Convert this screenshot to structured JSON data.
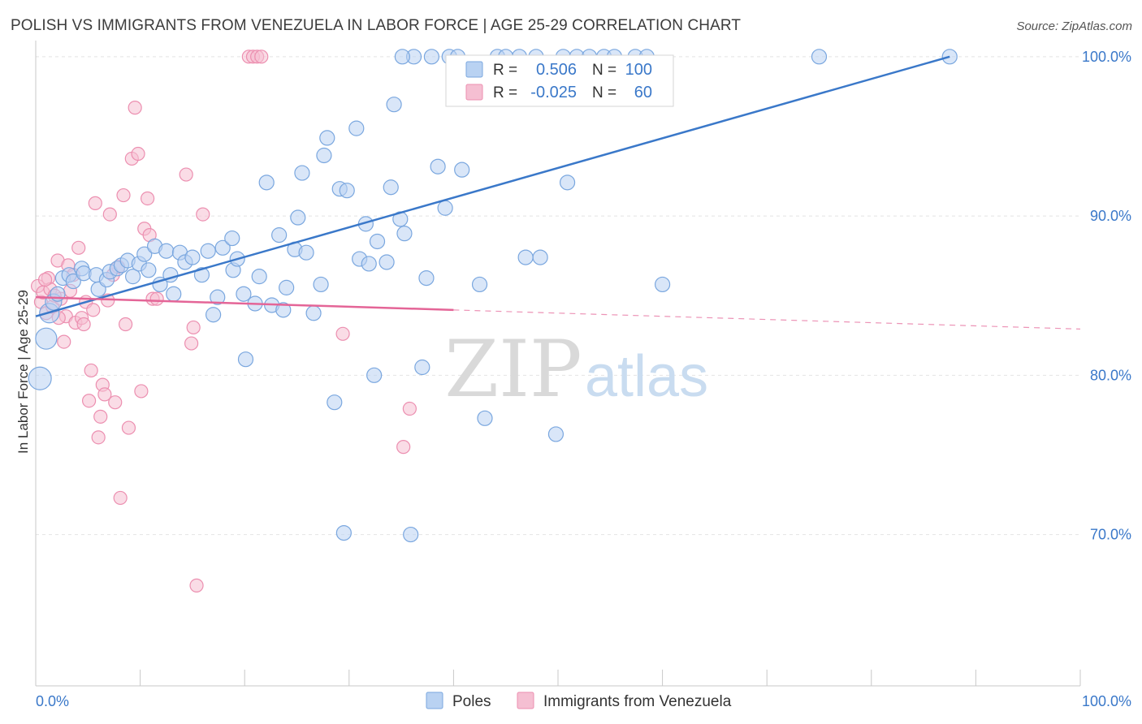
{
  "header": {
    "title": "POLISH VS IMMIGRANTS FROM VENEZUELA IN LABOR FORCE | AGE 25-29 CORRELATION CHART",
    "source": "Source: ZipAtlas.com"
  },
  "watermark": {
    "zip": "ZIP",
    "atlas": "atlas"
  },
  "colors": {
    "blue": "#3a78c9",
    "blue_fill": "#b9d2f2",
    "blue_edge": "#7aa7df",
    "pink": "#e46597",
    "pink_fill": "#f5bfd2",
    "pink_edge": "#ec8fb0",
    "tick_text": "#3a78c9",
    "grid": "#e4e4e4"
  },
  "chart_data": {
    "type": "scatter",
    "title": "POLISH VS IMMIGRANTS FROM VENEZUELA IN LABOR FORCE | AGE 25-29 CORRELATION CHART",
    "xlabel": "",
    "ylabel": "In Labor Force | Age 25-29",
    "xlim": [
      0,
      100
    ],
    "ylim": [
      60.5,
      100.5
    ],
    "x_tick_labels": [
      {
        "value": 0,
        "label": "0.0%"
      },
      {
        "value": 100,
        "label": "100.0%"
      }
    ],
    "y_tick_labels": [
      {
        "value": 100,
        "label": "100.0%"
      },
      {
        "value": 90,
        "label": "90.0%"
      },
      {
        "value": 80,
        "label": "80.0%"
      },
      {
        "value": 70,
        "label": "70.0%"
      }
    ],
    "legend_position": "top-center",
    "stats": [
      {
        "series": "Poles",
        "r_label": "R =",
        "r": "0.506",
        "n_label": "N =",
        "n": "100"
      },
      {
        "series": "Immigrants from Venezuela",
        "r_label": "R =",
        "r": "-0.025",
        "n_label": "N =",
        "n": "60"
      }
    ],
    "series": [
      {
        "name": "Poles",
        "color": "#3a78c9",
        "trend": {
          "x0": 0,
          "y0": 83.7,
          "x1": 87.5,
          "y1": 100.0,
          "solid_to": 87.5
        },
        "points": [
          [
            0.4,
            79.8,
            14
          ],
          [
            1.0,
            82.3,
            13
          ],
          [
            1.3,
            83.9,
            12
          ],
          [
            1.7,
            84.6,
            10
          ],
          [
            2.1,
            85.1,
            9
          ],
          [
            2.6,
            86.1,
            9
          ],
          [
            3.2,
            86.3,
            9
          ],
          [
            3.6,
            85.9,
            9
          ],
          [
            4.4,
            86.7,
            9
          ],
          [
            4.6,
            86.4,
            9
          ],
          [
            5.8,
            86.3,
            9
          ],
          [
            6.0,
            85.4,
            9
          ],
          [
            6.8,
            86.0,
            9
          ],
          [
            7.1,
            86.5,
            9
          ],
          [
            7.8,
            86.7,
            9
          ],
          [
            8.2,
            86.9,
            9
          ],
          [
            8.8,
            87.2,
            9
          ],
          [
            9.3,
            86.2,
            9
          ],
          [
            9.9,
            87.0,
            9
          ],
          [
            10.4,
            87.6,
            9
          ],
          [
            10.8,
            86.6,
            9
          ],
          [
            11.4,
            88.1,
            9
          ],
          [
            11.9,
            85.7,
            9
          ],
          [
            12.5,
            87.8,
            9
          ],
          [
            12.9,
            86.3,
            9
          ],
          [
            13.2,
            85.1,
            9
          ],
          [
            13.8,
            87.7,
            9
          ],
          [
            14.3,
            87.1,
            9
          ],
          [
            15.0,
            87.4,
            9
          ],
          [
            15.9,
            86.3,
            9
          ],
          [
            16.5,
            87.8,
            9
          ],
          [
            17.0,
            83.8,
            9
          ],
          [
            17.4,
            84.9,
            9
          ],
          [
            17.9,
            88.0,
            9
          ],
          [
            18.8,
            88.6,
            9
          ],
          [
            18.9,
            86.6,
            9
          ],
          [
            19.3,
            87.3,
            9
          ],
          [
            19.9,
            85.1,
            9
          ],
          [
            20.1,
            81.0,
            9
          ],
          [
            21.0,
            84.5,
            9
          ],
          [
            21.4,
            86.2,
            9
          ],
          [
            22.1,
            92.1,
            9
          ],
          [
            22.6,
            84.4,
            9
          ],
          [
            23.3,
            88.8,
            9
          ],
          [
            23.7,
            84.1,
            9
          ],
          [
            24.0,
            85.5,
            9
          ],
          [
            24.8,
            87.9,
            9
          ],
          [
            25.1,
            89.9,
            9
          ],
          [
            25.5,
            92.7,
            9
          ],
          [
            25.9,
            87.7,
            9
          ],
          [
            26.6,
            83.9,
            9
          ],
          [
            27.3,
            85.7,
            9
          ],
          [
            27.6,
            93.8,
            9
          ],
          [
            27.9,
            94.9,
            9
          ],
          [
            28.6,
            78.3,
            9
          ],
          [
            29.1,
            91.7,
            9
          ],
          [
            29.5,
            70.1,
            9
          ],
          [
            29.8,
            91.6,
            9
          ],
          [
            30.7,
            95.5,
            9
          ],
          [
            31.0,
            87.3,
            9
          ],
          [
            31.6,
            89.5,
            9
          ],
          [
            31.9,
            87.0,
            9
          ],
          [
            32.4,
            80.0,
            9
          ],
          [
            32.7,
            88.4,
            9
          ],
          [
            33.6,
            87.1,
            9
          ],
          [
            34.0,
            91.8,
            9
          ],
          [
            34.3,
            97.0,
            9
          ],
          [
            34.9,
            89.8,
            9
          ],
          [
            35.3,
            88.9,
            9
          ],
          [
            35.9,
            70.0,
            9
          ],
          [
            37.0,
            80.5,
            9
          ],
          [
            37.4,
            86.1,
            9
          ],
          [
            38.5,
            93.1,
            9
          ],
          [
            39.2,
            90.5,
            9
          ],
          [
            39.6,
            100.0,
            9
          ],
          [
            40.8,
            92.9,
            9
          ],
          [
            42.5,
            85.7,
            9
          ],
          [
            43.0,
            77.3,
            9
          ],
          [
            44.2,
            100.0,
            9
          ],
          [
            46.3,
            100.0,
            9
          ],
          [
            46.9,
            87.4,
            9
          ],
          [
            47.9,
            100.0,
            9
          ],
          [
            48.3,
            87.4,
            9
          ],
          [
            49.8,
            76.3,
            9
          ],
          [
            50.5,
            100.0,
            9
          ],
          [
            50.9,
            92.1,
            9
          ],
          [
            51.8,
            100.0,
            9
          ],
          [
            53.0,
            100.0,
            9
          ],
          [
            54.4,
            100.0,
            9
          ],
          [
            55.4,
            100.0,
            9
          ],
          [
            57.4,
            100.0,
            9
          ],
          [
            58.5,
            100.0,
            9
          ],
          [
            60.0,
            85.7,
            9
          ],
          [
            37.9,
            100.0,
            9
          ],
          [
            36.2,
            100.0,
            9
          ],
          [
            35.1,
            100.0,
            9
          ],
          [
            40.4,
            100.0,
            9
          ],
          [
            45.0,
            100.0,
            9
          ],
          [
            75.0,
            100.0,
            9
          ],
          [
            87.5,
            100.0,
            9
          ]
        ]
      },
      {
        "name": "Immigrants from Venezuela",
        "color": "#e46597",
        "trend": {
          "x0": 0,
          "y0": 84.9,
          "x1": 100,
          "y1": 82.9,
          "solid_to": 40.0
        },
        "points": [
          [
            0.2,
            85.6,
            8
          ],
          [
            0.5,
            84.6,
            8
          ],
          [
            0.7,
            85.2,
            8
          ],
          [
            1.0,
            83.9,
            8
          ],
          [
            1.2,
            86.1,
            8
          ],
          [
            1.4,
            85.4,
            8
          ],
          [
            1.6,
            84.3,
            8
          ],
          [
            2.1,
            87.2,
            8
          ],
          [
            2.4,
            84.8,
            8
          ],
          [
            2.7,
            82.1,
            8
          ],
          [
            2.9,
            83.7,
            8
          ],
          [
            3.1,
            86.9,
            8
          ],
          [
            3.3,
            85.3,
            8
          ],
          [
            3.6,
            86.3,
            8
          ],
          [
            3.8,
            83.3,
            8
          ],
          [
            4.1,
            88.0,
            8
          ],
          [
            4.4,
            83.6,
            8
          ],
          [
            4.6,
            83.2,
            8
          ],
          [
            4.8,
            84.6,
            8
          ],
          [
            5.1,
            78.4,
            8
          ],
          [
            5.3,
            80.3,
            8
          ],
          [
            5.5,
            84.1,
            8
          ],
          [
            5.7,
            90.8,
            8
          ],
          [
            6.0,
            76.1,
            8
          ],
          [
            6.2,
            77.4,
            8
          ],
          [
            6.4,
            79.4,
            8
          ],
          [
            6.6,
            78.8,
            8
          ],
          [
            6.9,
            84.7,
            8
          ],
          [
            7.1,
            90.1,
            8
          ],
          [
            7.4,
            86.3,
            8
          ],
          [
            7.6,
            78.3,
            8
          ],
          [
            7.9,
            86.8,
            8
          ],
          [
            8.1,
            72.3,
            8
          ],
          [
            8.4,
            91.3,
            8
          ],
          [
            8.6,
            83.2,
            8
          ],
          [
            8.9,
            76.7,
            8
          ],
          [
            9.2,
            93.6,
            8
          ],
          [
            9.5,
            96.8,
            8
          ],
          [
            9.8,
            93.9,
            8
          ],
          [
            10.1,
            79.0,
            8
          ],
          [
            10.4,
            89.2,
            8
          ],
          [
            10.7,
            91.1,
            8
          ],
          [
            10.9,
            88.8,
            8
          ],
          [
            11.2,
            84.8,
            8
          ],
          [
            11.6,
            84.8,
            8
          ],
          [
            14.4,
            92.6,
            8
          ],
          [
            14.9,
            82.0,
            8
          ],
          [
            15.1,
            83.0,
            8
          ],
          [
            15.4,
            66.8,
            8
          ],
          [
            16.0,
            90.1,
            8
          ],
          [
            20.4,
            100.0,
            8
          ],
          [
            20.8,
            100.0,
            8
          ],
          [
            21.2,
            100.0,
            8
          ],
          [
            21.6,
            100.0,
            8
          ],
          [
            29.4,
            82.6,
            8
          ],
          [
            35.2,
            75.5,
            8
          ],
          [
            35.8,
            77.9,
            8
          ],
          [
            1.8,
            85.0,
            8
          ],
          [
            2.2,
            83.6,
            8
          ],
          [
            0.9,
            86.0,
            8
          ]
        ]
      }
    ]
  },
  "legend_bottom": [
    {
      "name": "Poles"
    },
    {
      "name": "Immigrants from Venezuela"
    }
  ]
}
